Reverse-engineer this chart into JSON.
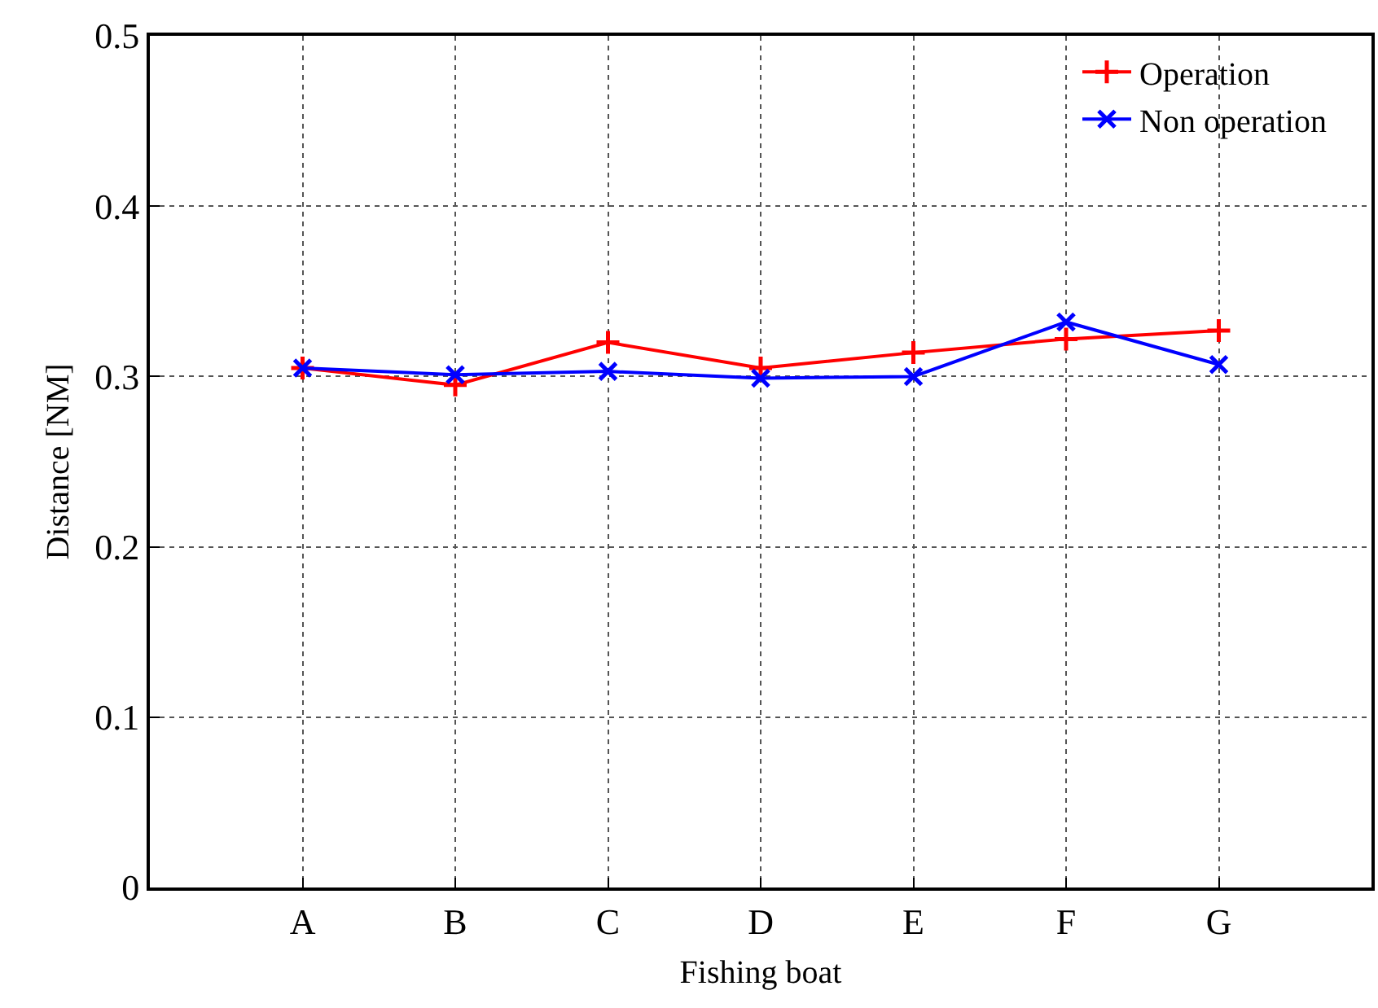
{
  "chart_data": {
    "type": "line",
    "xlabel": "Fishing boat",
    "ylabel": "Distance [NM]",
    "categories": [
      "A",
      "B",
      "C",
      "D",
      "E",
      "F",
      "G"
    ],
    "series": [
      {
        "name": "Operation",
        "color": "#ff0000",
        "marker": "cross",
        "values": [
          0.305,
          0.295,
          0.32,
          0.305,
          0.314,
          0.322,
          0.327
        ]
      },
      {
        "name": "Non operation",
        "color": "#0000ff",
        "marker": "x",
        "values": [
          0.305,
          0.301,
          0.303,
          0.299,
          0.3,
          0.332,
          0.307
        ]
      }
    ],
    "ylim": [
      0,
      0.5
    ],
    "yticks": [
      0,
      0.1,
      0.2,
      0.3,
      0.4,
      0.5
    ],
    "grid": true,
    "legend": "top right",
    "line_style": "solid"
  }
}
